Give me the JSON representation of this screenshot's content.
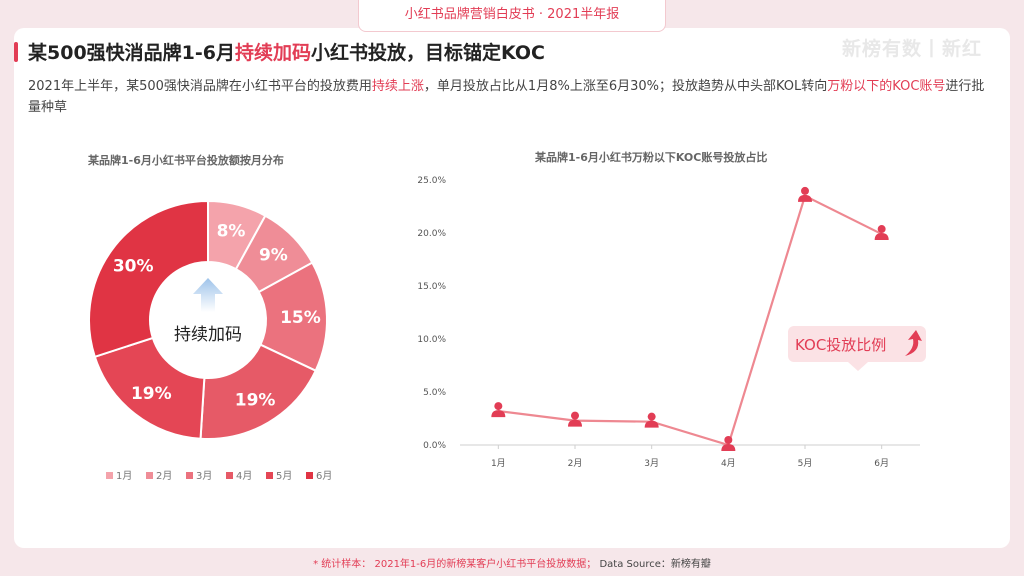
{
  "header": {
    "report_title": "小红书品牌营销白皮书 · 2021半年报"
  },
  "watermark": {
    "text": "新榜有数丨新红"
  },
  "slide": {
    "title_part1": "某500强快消品牌1-6月",
    "title_highlight": "持续加码",
    "title_part2": "小红书投放，目标锚定KOC",
    "subtitle_part1": "2021年上半年，某500强快消品牌在小红书平台的投放费用",
    "subtitle_hl1": "持续上涨",
    "subtitle_part2": "，单月投放占比从1月8%上涨至6月30%；投放趋势从中头部KOL转向",
    "subtitle_hl2": "万粉以下的KOC账号",
    "subtitle_part3": "进行批量种草"
  },
  "colors": {
    "accent": "#e23d55",
    "slices": [
      "#f4a3ab",
      "#ef8d97",
      "#eb727e",
      "#e65a67",
      "#e44655",
      "#e03444"
    ],
    "line": "#ee8891"
  },
  "chart_data": [
    {
      "type": "pie",
      "title": "某品牌1-6月小红书平台投放额按月分布",
      "center_label": "持续加码",
      "categories": [
        "1月",
        "2月",
        "3月",
        "4月",
        "5月",
        "6月"
      ],
      "values": [
        8,
        9,
        15,
        19,
        19,
        30
      ],
      "value_labels": [
        "8%",
        "9%",
        "15%",
        "19%",
        "19%",
        "30%"
      ],
      "legend_position": "bottom"
    },
    {
      "type": "line",
      "title": "某品牌1-6月小红书万粉以下KOC账号投放占比",
      "categories": [
        "1月",
        "2月",
        "3月",
        "4月",
        "5月",
        "6月"
      ],
      "values": [
        3.2,
        2.3,
        2.2,
        0.0,
        23.5,
        19.9
      ],
      "y_ticks": [
        "0.0%",
        "5.0%",
        "10.0%",
        "15.0%",
        "20.0%",
        "25.0%"
      ],
      "ylim": [
        0,
        25
      ],
      "annotation": "KOC投放比例",
      "grid": false
    }
  ],
  "footer": {
    "note": "* 统计样本： 2021年1-6月的新榜某客户小红书平台投放数据；",
    "source": "Data Source：新榜有瓣"
  }
}
